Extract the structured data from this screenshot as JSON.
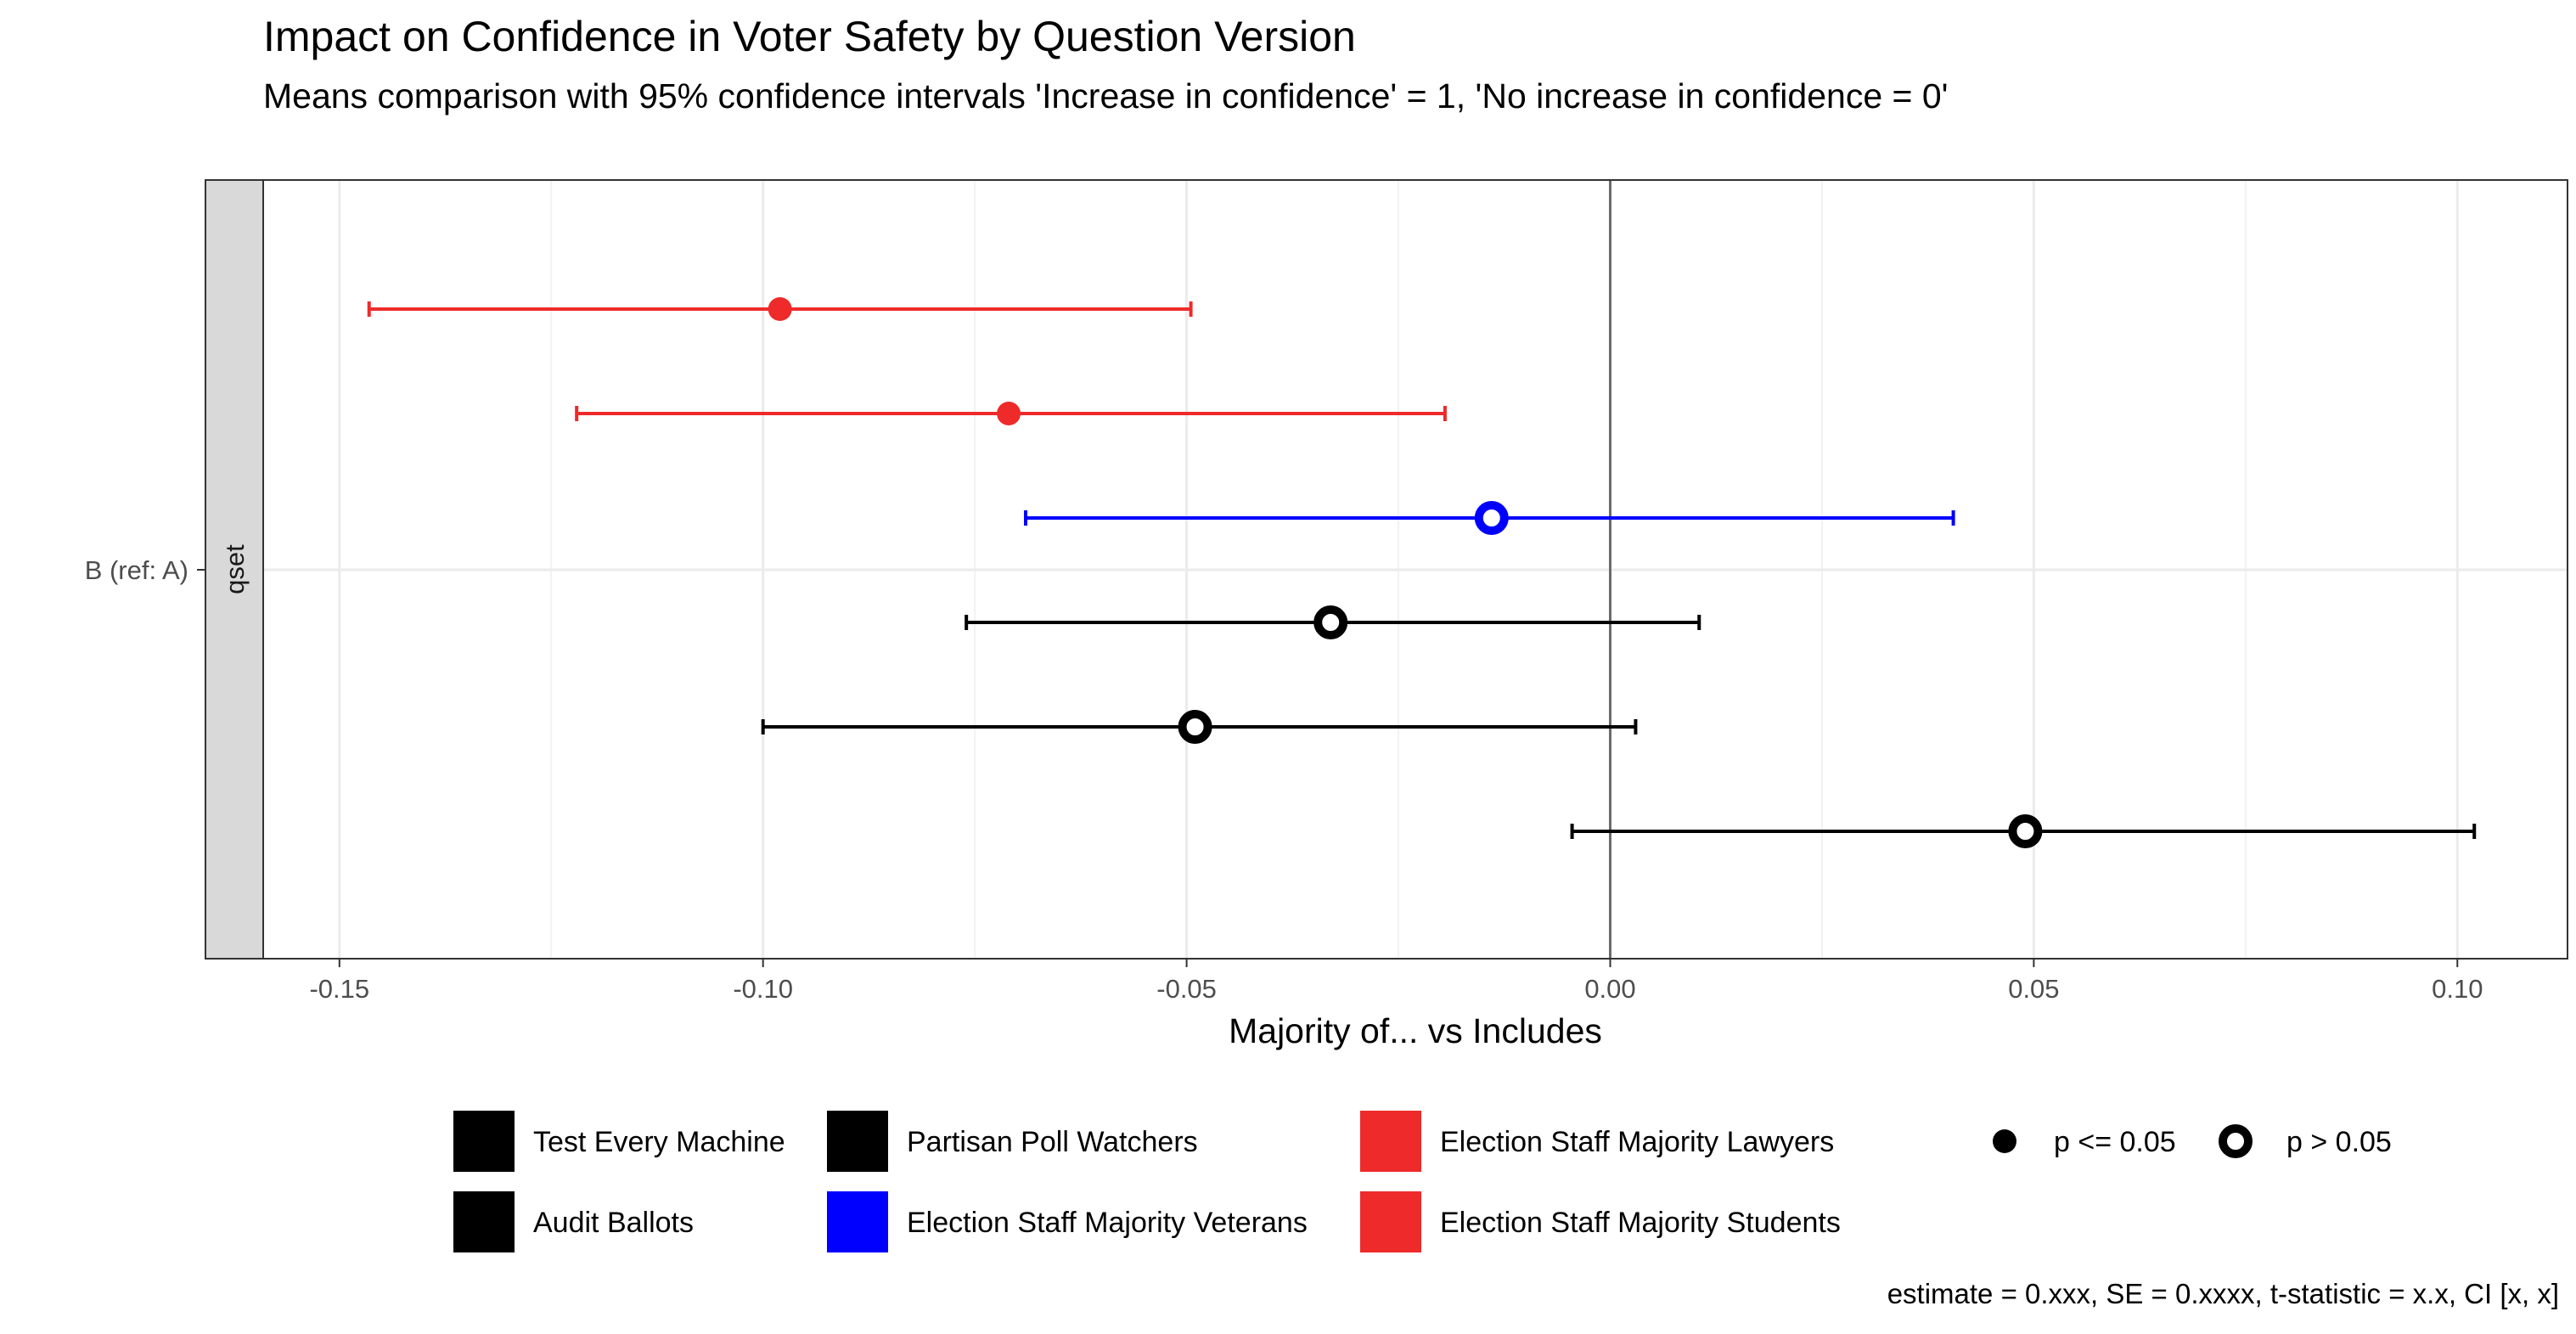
{
  "chart_data": {
    "type": "scatter",
    "title": "Impact on Confidence in Voter Safety by Question Version",
    "subtitle": "Means comparison with 95% confidence intervals 'Increase in confidence' = 1, 'No increase in confidence = 0'",
    "xlabel": "Majority of... vs Includes",
    "ylabel": "",
    "facet_label": "qset",
    "y_category": "B (ref: A)",
    "xlim": [
      -0.159,
      0.113
    ],
    "x_ticks": [
      -0.15,
      -0.1,
      -0.05,
      0.0,
      0.05,
      0.1
    ],
    "x_tick_labels": [
      "-0.15",
      "-0.10",
      "-0.05",
      "0.00",
      "0.05",
      "0.10"
    ],
    "reference_line": 0,
    "grid": true,
    "legend_position": "bottom",
    "series": [
      {
        "name": "Election Staff Majority Students",
        "estimate": -0.098,
        "ci": [
          -0.1465,
          -0.0495
        ],
        "significant": true,
        "color": "#EE2A2A"
      },
      {
        "name": "Election Staff Majority Lawyers",
        "estimate": -0.071,
        "ci": [
          -0.122,
          -0.0195
        ],
        "significant": true,
        "color": "#EE2A2A"
      },
      {
        "name": "Election Staff Majority Veterans",
        "estimate": -0.014,
        "ci": [
          -0.069,
          0.0405
        ],
        "significant": false,
        "color": "#0000FF"
      },
      {
        "name": "Partisan Poll Watchers",
        "estimate": -0.033,
        "ci": [
          -0.076,
          0.0105
        ],
        "significant": false,
        "color": "#000000"
      },
      {
        "name": "Audit Ballots",
        "estimate": -0.049,
        "ci": [
          -0.1,
          0.003
        ],
        "significant": false,
        "color": "#000000"
      },
      {
        "name": "Test Every Machine",
        "estimate": 0.049,
        "ci": [
          -0.0045,
          0.102
        ],
        "significant": false,
        "color": "#000000"
      }
    ],
    "legend": {
      "colors": [
        {
          "label": "Test Every Machine",
          "color": "#000000"
        },
        {
          "label": "Audit Ballots",
          "color": "#000000"
        },
        {
          "label": "Partisan Poll Watchers",
          "color": "#000000"
        },
        {
          "label": "Election Staff Majority Veterans",
          "color": "#0000FF"
        },
        {
          "label": "Election Staff Majority Lawyers",
          "color": "#EE2A2A"
        },
        {
          "label": "Election Staff Majority Students",
          "color": "#EE2A2A"
        }
      ],
      "shapes": [
        {
          "label": "p <= 0.05",
          "filled": true
        },
        {
          "label": "p > 0.05",
          "filled": false
        }
      ]
    },
    "caption": "estimate = 0.xxx, SE = 0.xxxx, t-statistic = x.x, CI [x, x]"
  }
}
